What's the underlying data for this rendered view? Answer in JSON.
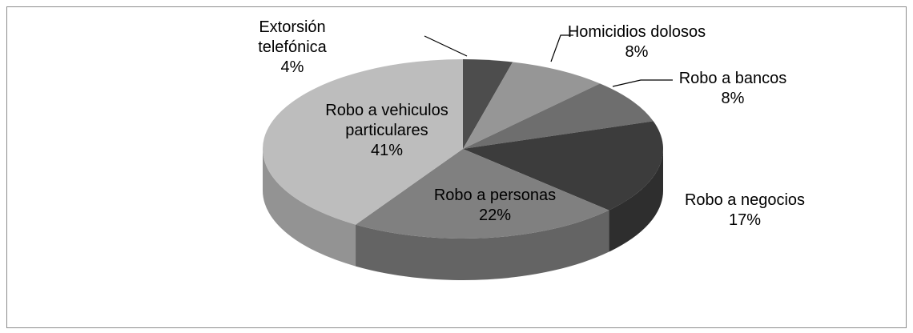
{
  "chart_data": {
    "type": "pie",
    "categories": [
      "Extorsión telefónica",
      "Homicidios dolosos",
      "Robo a bancos",
      "Robo a negocios",
      "Robo a personas",
      "Robo a vehiculos particulares"
    ],
    "values": [
      4,
      8,
      8,
      17,
      22,
      41
    ],
    "value_labels": [
      "4%",
      "8%",
      "8%",
      "17%",
      "22%",
      "41%"
    ],
    "colors": [
      "#4d4d4d",
      "#969696",
      "#6e6e6e",
      "#3c3c3c",
      "#808080",
      "#bdbdbd"
    ]
  }
}
